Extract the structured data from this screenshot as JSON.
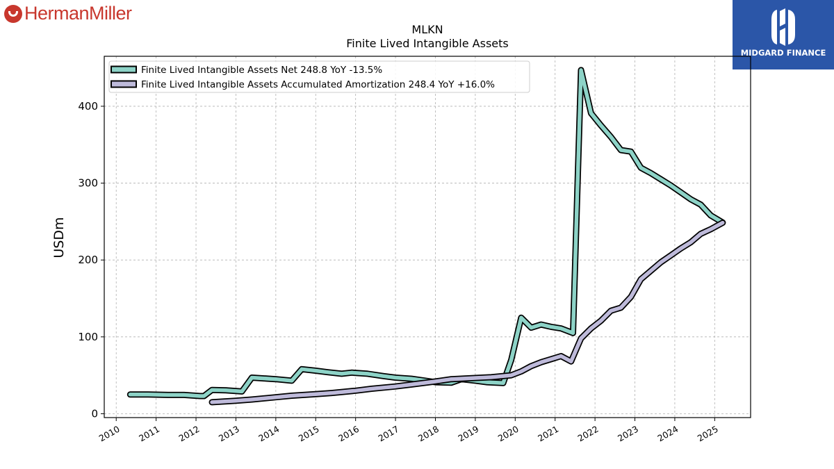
{
  "brand": {
    "left_logo": "HermanMiller",
    "right_logo": "MIDGARD FINANCE"
  },
  "colors": {
    "net": "#8dd3c7",
    "amortization": "#bebada",
    "outline": "#000000",
    "grid": "#b0b0b0",
    "brand_red": "#c8372d",
    "brand_blue": "#2b56a8"
  },
  "chart_data": {
    "type": "line",
    "title": "MLKN",
    "subtitle": "Finite Lived Intangible Assets",
    "ylabel": "USDm",
    "xlabel": "",
    "xlim": [
      2009.7,
      2025.9
    ],
    "ylim": [
      -5,
      465
    ],
    "yticks": [
      0,
      100,
      200,
      300,
      400
    ],
    "xticks": [
      "2010",
      "2011",
      "2012",
      "2013",
      "2014",
      "2015",
      "2016",
      "2017",
      "2018",
      "2019",
      "2020",
      "2021",
      "2022",
      "2023",
      "2024",
      "2025"
    ],
    "grid": true,
    "legend_position": "top-left",
    "series": [
      {
        "name": "Finite Lived Intangible Assets Net  248.8 YoY -13.5%",
        "color": "#8dd3c7",
        "points": [
          [
            2010.35,
            25
          ],
          [
            2010.8,
            25
          ],
          [
            2011.3,
            24.5
          ],
          [
            2011.7,
            24.5
          ],
          [
            2012.1,
            23
          ],
          [
            2012.2,
            23
          ],
          [
            2012.4,
            31
          ],
          [
            2012.75,
            30.5
          ],
          [
            2013.15,
            29
          ],
          [
            2013.4,
            47
          ],
          [
            2013.7,
            46
          ],
          [
            2014.0,
            45
          ],
          [
            2014.4,
            43
          ],
          [
            2014.65,
            58
          ],
          [
            2015.0,
            56
          ],
          [
            2015.3,
            54
          ],
          [
            2015.65,
            52
          ],
          [
            2015.9,
            53.5
          ],
          [
            2016.3,
            52
          ],
          [
            2016.7,
            49
          ],
          [
            2017.0,
            47
          ],
          [
            2017.4,
            45.5
          ],
          [
            2017.75,
            43
          ],
          [
            2018.0,
            41
          ],
          [
            2018.4,
            40.5
          ],
          [
            2018.65,
            45
          ],
          [
            2019.0,
            43
          ],
          [
            2019.3,
            41
          ],
          [
            2019.7,
            40
          ],
          [
            2019.9,
            70
          ],
          [
            2020.15,
            125
          ],
          [
            2020.4,
            112
          ],
          [
            2020.65,
            116
          ],
          [
            2020.9,
            113
          ],
          [
            2021.15,
            111
          ],
          [
            2021.45,
            105
          ],
          [
            2021.65,
            447
          ],
          [
            2021.9,
            391
          ],
          [
            2022.15,
            375
          ],
          [
            2022.4,
            360
          ],
          [
            2022.65,
            343
          ],
          [
            2022.9,
            341
          ],
          [
            2023.15,
            320
          ],
          [
            2023.4,
            313
          ],
          [
            2023.65,
            305
          ],
          [
            2023.9,
            297
          ],
          [
            2024.15,
            288
          ],
          [
            2024.4,
            279
          ],
          [
            2024.65,
            272
          ],
          [
            2024.9,
            258
          ],
          [
            2025.2,
            248.8
          ]
        ]
      },
      {
        "name": "Finite Lived Intangible Assets Accumulated Amortization  248.4 YoY +16.0%",
        "color": "#bebada",
        "points": [
          [
            2012.4,
            15
          ],
          [
            2013.0,
            17
          ],
          [
            2013.4,
            18.5
          ],
          [
            2014.0,
            21.5
          ],
          [
            2014.4,
            23.5
          ],
          [
            2015.0,
            25.5
          ],
          [
            2015.4,
            27
          ],
          [
            2016.0,
            30
          ],
          [
            2016.4,
            32.5
          ],
          [
            2017.0,
            35.5
          ],
          [
            2017.4,
            38
          ],
          [
            2018.0,
            42
          ],
          [
            2018.4,
            45
          ],
          [
            2019.0,
            46.5
          ],
          [
            2019.4,
            47.5
          ],
          [
            2019.9,
            50
          ],
          [
            2020.15,
            55
          ],
          [
            2020.4,
            62
          ],
          [
            2020.65,
            67
          ],
          [
            2020.9,
            71
          ],
          [
            2021.15,
            75
          ],
          [
            2021.4,
            68
          ],
          [
            2021.65,
            98
          ],
          [
            2021.9,
            111
          ],
          [
            2022.15,
            121
          ],
          [
            2022.4,
            134
          ],
          [
            2022.65,
            138
          ],
          [
            2022.9,
            152
          ],
          [
            2023.15,
            175
          ],
          [
            2023.4,
            186
          ],
          [
            2023.65,
            197
          ],
          [
            2023.9,
            206
          ],
          [
            2024.15,
            215
          ],
          [
            2024.4,
            223
          ],
          [
            2024.65,
            234
          ],
          [
            2024.9,
            240
          ],
          [
            2025.2,
            248.4
          ]
        ]
      }
    ]
  }
}
